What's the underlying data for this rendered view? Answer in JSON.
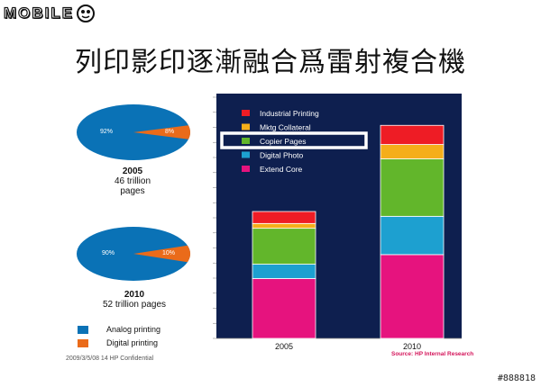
{
  "logo": {
    "text": "MOBILE"
  },
  "slide": {
    "title": "列印影印逐漸融合爲雷射複合機",
    "footer": "2009/3/5/08    14   HP Confidential",
    "watermark": "#888818",
    "source": "Source: HP Internal Research"
  },
  "pies": [
    {
      "year": "2005",
      "caption": "46 trillion\npages",
      "analog_label": "92%",
      "digital_label": "8%",
      "digital_share": 0.08
    },
    {
      "year": "2010",
      "caption": "52 trillion pages",
      "analog_label": "90%",
      "digital_label": "10%",
      "digital_share": 0.1
    }
  ],
  "pie_legend": [
    {
      "label": "Analog printing",
      "color": "#0a72b6"
    },
    {
      "label": "Digital printing",
      "color": "#ea6b1a"
    }
  ],
  "colors": {
    "chart_bg": "#0e1f4f",
    "highlight_box": "#ffffff",
    "source_text": "#d4145a"
  },
  "chart_data": {
    "type": "bar",
    "stacked": true,
    "categories": [
      "2005",
      "2010"
    ],
    "ylim": [
      0,
      100
    ],
    "grid": false,
    "legend_position": "top-left",
    "highlighted_series": "Copier Pages",
    "series": [
      {
        "name": "Extend Core",
        "color": "#e6137e",
        "values": [
          25,
          35
        ]
      },
      {
        "name": "Digital Photo",
        "color": "#1da0d0",
        "values": [
          6,
          16
        ]
      },
      {
        "name": "Copier Pages",
        "color": "#62b62b",
        "values": [
          15,
          24
        ]
      },
      {
        "name": "Mktg Collateral",
        "color": "#f5ae1a",
        "values": [
          2,
          6
        ]
      },
      {
        "name": "Industrial Printing",
        "color": "#ee1c25",
        "values": [
          5,
          8
        ]
      }
    ]
  }
}
